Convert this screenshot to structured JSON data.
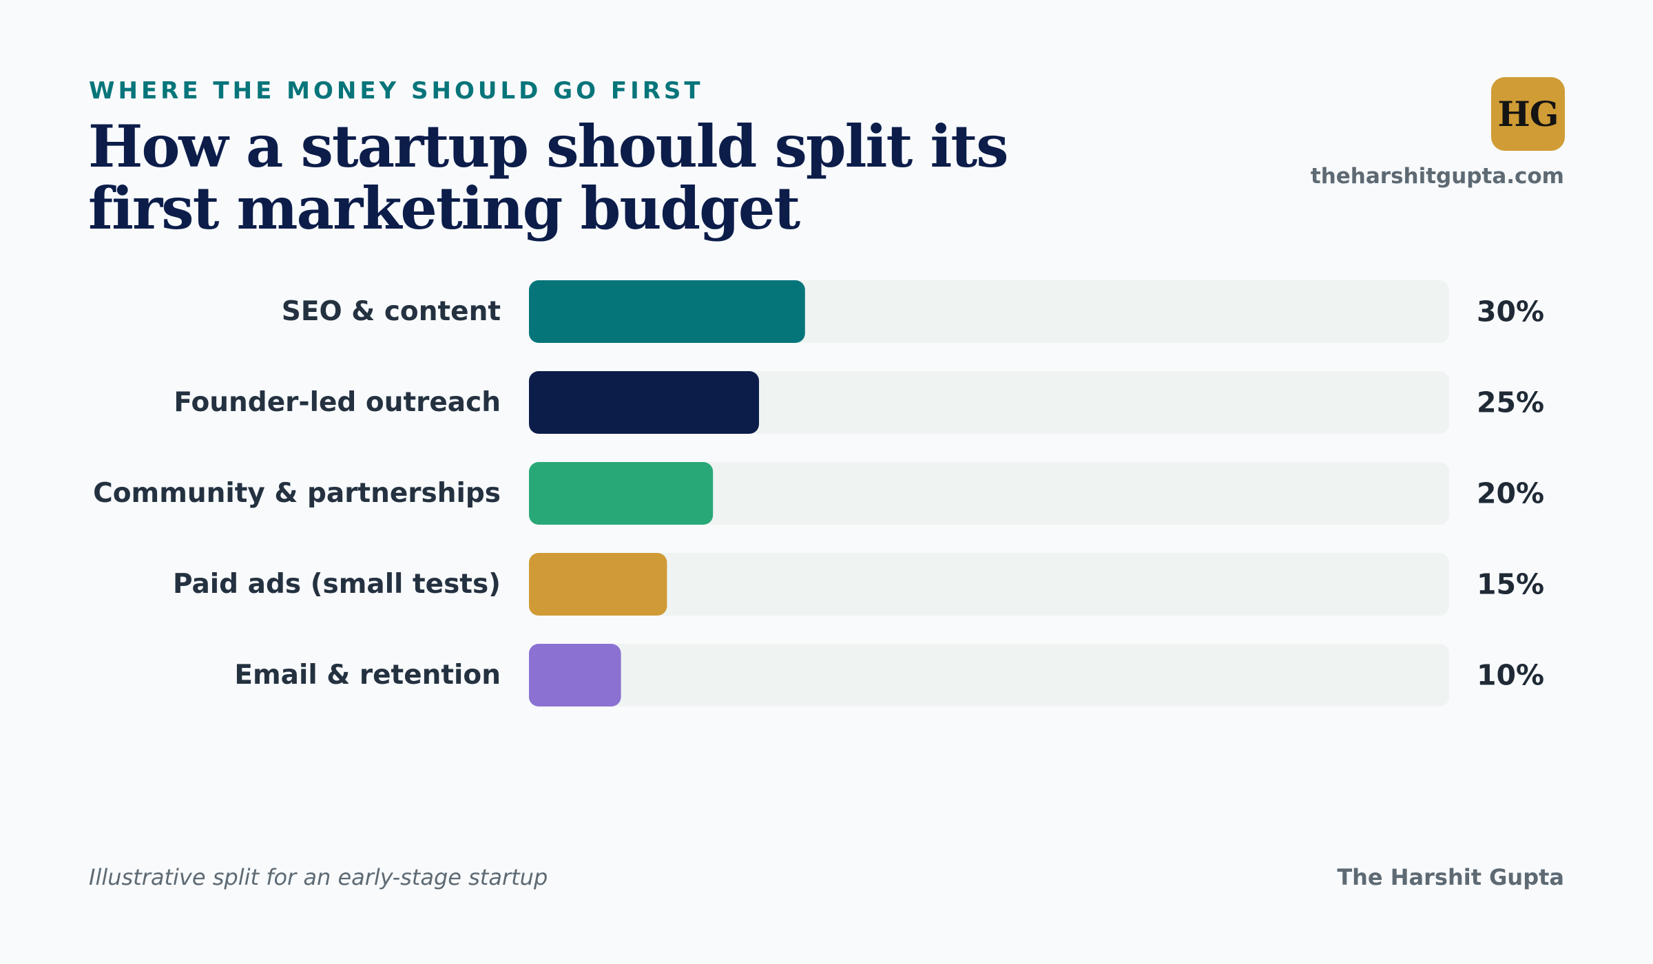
{
  "header": {
    "eyebrow": "WHERE THE MONEY SHOULD GO FIRST",
    "title": "How a startup should split its first marketing budget"
  },
  "brand": {
    "logo_text": "HG",
    "site": "theharshitgupta.com",
    "credit": "The Harshit Gupta",
    "logo_color": "#d09c35"
  },
  "footnote": "Illustrative split for an early-stage startup",
  "chart_data": {
    "type": "bar",
    "orientation": "horizontal",
    "categories": [
      "SEO & content",
      "Founder-led outreach",
      "Community & partnerships",
      "Paid ads (small tests)",
      "Email & retention"
    ],
    "values": [
      30,
      25,
      20,
      15,
      10
    ],
    "value_labels": [
      "30%",
      "25%",
      "20%",
      "15%",
      "10%"
    ],
    "colors": [
      "#05757a",
      "#0c1d4a",
      "#29a877",
      "#d09a36",
      "#8b71d2"
    ],
    "track_color": "#eff3f2",
    "xlim": [
      0,
      100
    ],
    "unit": "%",
    "grid": false,
    "legend": "none"
  }
}
